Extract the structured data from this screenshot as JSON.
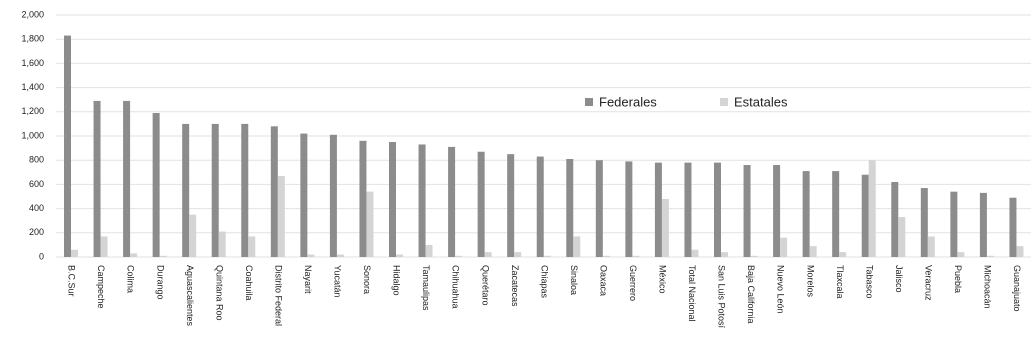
{
  "chart_data": {
    "type": "bar",
    "categories": [
      "B.C.Sur",
      "Campeche",
      "Colima",
      "Durango",
      "Aguascalientes",
      "Quintana Roo",
      "Coahuila",
      "Distrito Federal",
      "Nayarit",
      "Yucatán",
      "Sonora",
      "Hidalgo",
      "Tamaulipas",
      "Chihuahua",
      "Querétaro",
      "Zacatecas",
      "Chiapas",
      "Sinaloa",
      "Oaxaca",
      "Guerrero",
      "México",
      "Total Nacional",
      "San Luis Potosí",
      "Baja California",
      "Nuevo León",
      "Morelos",
      "Tlaxcala",
      "Tabasco",
      "Jalisco",
      "Veracruz",
      "Puebla",
      "Michoacán",
      "Guanajuato"
    ],
    "series": [
      {
        "name": "Federales",
        "color": "#8c8c8c",
        "values": [
          1830,
          1290,
          1290,
          1190,
          1100,
          1100,
          1100,
          1080,
          1020,
          1010,
          960,
          950,
          930,
          910,
          870,
          850,
          830,
          810,
          800,
          790,
          780,
          780,
          780,
          760,
          760,
          710,
          710,
          680,
          620,
          570,
          540,
          530,
          490
        ]
      },
      {
        "name": "Estatales",
        "color": "#d4d4d4",
        "values": [
          60,
          170,
          30,
          10,
          350,
          210,
          170,
          670,
          20,
          20,
          540,
          20,
          100,
          10,
          40,
          40,
          10,
          170,
          10,
          10,
          480,
          60,
          40,
          10,
          160,
          90,
          40,
          800,
          330,
          170,
          40,
          10,
          90
        ]
      }
    ],
    "ylim": [
      0,
      2000
    ],
    "yticks": [
      0,
      200,
      400,
      600,
      800,
      {
        "value": 1000,
        "label": "1,000"
      },
      {
        "value": 1200,
        "label": "1,200"
      },
      {
        "value": 1400,
        "label": "1,400"
      },
      {
        "value": 1600,
        "label": "1,600"
      },
      {
        "value": 1800,
        "label": "1,800"
      },
      {
        "value": 2000,
        "label": "2,000"
      }
    ],
    "grid": true
  }
}
